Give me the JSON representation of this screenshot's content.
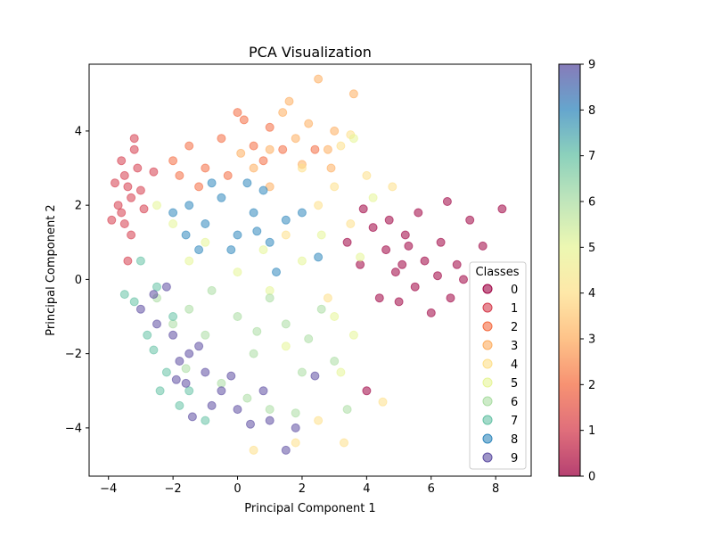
{
  "chart_data": {
    "type": "scatter",
    "title": "PCA Visualization",
    "xlabel": "Principal Component 1",
    "ylabel": "Principal Component 2",
    "xlim": [
      -4.6,
      9.1
    ],
    "ylim": [
      -5.3,
      5.8
    ],
    "xticks": [
      -4,
      -2,
      0,
      2,
      4,
      6,
      8
    ],
    "yticks": [
      -4,
      -2,
      0,
      2,
      4
    ],
    "legend": {
      "title": "Classes",
      "placement": "lower-right"
    },
    "colorbar": {
      "range": [
        0,
        9
      ],
      "ticks": [
        0,
        1,
        2,
        3,
        4,
        5,
        6,
        7,
        8,
        9
      ],
      "colormap": "Spectral"
    },
    "class_colors": [
      "#9e0142",
      "#d53e4f",
      "#f46d43",
      "#fdae61",
      "#fee08b",
      "#e6f598",
      "#abdda4",
      "#66c2a5",
      "#3288bd",
      "#5e4fa2"
    ],
    "series": [
      {
        "name": "0",
        "points": [
          [
            4.6,
            0.8
          ],
          [
            5.2,
            1.2
          ],
          [
            5.8,
            0.5
          ],
          [
            6.3,
            1.0
          ],
          [
            4.9,
            0.2
          ],
          [
            5.5,
            -0.2
          ],
          [
            6.8,
            0.4
          ],
          [
            7.2,
            1.6
          ],
          [
            3.8,
            0.4
          ],
          [
            4.2,
            1.4
          ],
          [
            5.0,
            -0.6
          ],
          [
            6.0,
            -0.9
          ],
          [
            6.6,
            -0.5
          ],
          [
            7.6,
            0.9
          ],
          [
            8.2,
            1.9
          ],
          [
            3.4,
            1.0
          ],
          [
            4.4,
            -0.5
          ],
          [
            4.0,
            -3.0
          ],
          [
            5.6,
            1.8
          ],
          [
            6.2,
            0.1
          ],
          [
            5.3,
            0.9
          ],
          [
            4.7,
            1.6
          ],
          [
            7.0,
            0.0
          ],
          [
            6.5,
            2.1
          ],
          [
            3.9,
            1.9
          ],
          [
            5.1,
            0.4
          ]
        ]
      },
      {
        "name": "1",
        "points": [
          [
            -3.5,
            2.8
          ],
          [
            -3.3,
            2.2
          ],
          [
            -3.6,
            1.8
          ],
          [
            -3.2,
            3.5
          ],
          [
            -3.4,
            2.5
          ],
          [
            -3.7,
            2.0
          ],
          [
            -3.1,
            3.0
          ],
          [
            -3.5,
            1.5
          ],
          [
            -3.0,
            2.4
          ],
          [
            -3.8,
            2.6
          ],
          [
            -3.3,
            1.2
          ],
          [
            -3.6,
            3.2
          ],
          [
            -2.9,
            1.9
          ],
          [
            -3.4,
            0.5
          ],
          [
            -3.2,
            3.8
          ],
          [
            -2.6,
            2.9
          ],
          [
            -3.9,
            1.6
          ]
        ]
      },
      {
        "name": "2",
        "points": [
          [
            -1.5,
            3.6
          ],
          [
            -1.0,
            3.0
          ],
          [
            -2.0,
            3.2
          ],
          [
            -0.5,
            3.8
          ],
          [
            0.2,
            4.3
          ],
          [
            0.8,
            3.2
          ],
          [
            -1.2,
            2.5
          ],
          [
            1.4,
            3.5
          ],
          [
            -0.3,
            2.8
          ],
          [
            0.5,
            3.6
          ],
          [
            2.4,
            3.5
          ],
          [
            -1.8,
            2.8
          ],
          [
            0.0,
            4.5
          ],
          [
            1.0,
            4.1
          ]
        ]
      },
      {
        "name": "3",
        "points": [
          [
            0.5,
            3.0
          ],
          [
            1.0,
            3.5
          ],
          [
            1.8,
            3.8
          ],
          [
            2.2,
            4.2
          ],
          [
            2.8,
            3.5
          ],
          [
            1.4,
            4.5
          ],
          [
            2.5,
            5.4
          ],
          [
            3.6,
            5.0
          ],
          [
            1.0,
            2.5
          ],
          [
            3.0,
            4.0
          ],
          [
            0.1,
            3.4
          ],
          [
            2.0,
            3.1
          ],
          [
            1.6,
            4.8
          ],
          [
            2.9,
            3.0
          ]
        ]
      },
      {
        "name": "4",
        "points": [
          [
            2.0,
            3.0
          ],
          [
            3.0,
            2.5
          ],
          [
            3.5,
            1.5
          ],
          [
            2.5,
            2.0
          ],
          [
            4.0,
            2.8
          ],
          [
            3.2,
            3.6
          ],
          [
            1.5,
            1.2
          ],
          [
            2.8,
            -0.5
          ],
          [
            4.5,
            -3.3
          ],
          [
            1.8,
            -4.4
          ],
          [
            3.3,
            -4.4
          ],
          [
            2.5,
            -3.8
          ],
          [
            3.5,
            3.9
          ],
          [
            4.8,
            2.5
          ],
          [
            0.5,
            -4.6
          ]
        ]
      },
      {
        "name": "5",
        "points": [
          [
            -2.0,
            1.5
          ],
          [
            -1.5,
            0.5
          ],
          [
            -1.0,
            1.0
          ],
          [
            0.0,
            0.2
          ],
          [
            1.0,
            -0.3
          ],
          [
            2.0,
            0.5
          ],
          [
            3.0,
            -1.0
          ],
          [
            3.6,
            -1.5
          ],
          [
            -2.5,
            2.0
          ],
          [
            2.6,
            1.2
          ],
          [
            3.8,
            0.6
          ],
          [
            1.5,
            -1.8
          ],
          [
            3.2,
            -2.5
          ],
          [
            0.8,
            0.8
          ],
          [
            3.6,
            3.8
          ],
          [
            4.2,
            2.2
          ]
        ]
      },
      {
        "name": "6",
        "points": [
          [
            -2.5,
            -0.5
          ],
          [
            -2.0,
            -1.2
          ],
          [
            -1.5,
            -0.8
          ],
          [
            -1.0,
            -1.5
          ],
          [
            0.0,
            -1.0
          ],
          [
            0.5,
            -2.0
          ],
          [
            1.0,
            -0.5
          ],
          [
            1.5,
            -1.2
          ],
          [
            2.0,
            -2.5
          ],
          [
            -0.5,
            -2.8
          ],
          [
            1.0,
            -3.5
          ],
          [
            2.2,
            -1.6
          ],
          [
            3.0,
            -2.2
          ],
          [
            -0.8,
            -0.3
          ],
          [
            0.3,
            -3.2
          ],
          [
            1.8,
            -3.6
          ],
          [
            2.6,
            -0.8
          ],
          [
            -1.6,
            -2.4
          ],
          [
            0.6,
            -1.4
          ],
          [
            3.4,
            -3.5
          ]
        ]
      },
      {
        "name": "7",
        "points": [
          [
            -3.0,
            0.5
          ],
          [
            -2.5,
            -0.2
          ],
          [
            -2.0,
            -1.0
          ],
          [
            -2.8,
            -1.5
          ],
          [
            -2.2,
            -2.5
          ],
          [
            -1.5,
            -3.0
          ],
          [
            -3.2,
            -0.6
          ],
          [
            -2.6,
            -1.9
          ],
          [
            -1.8,
            -3.4
          ],
          [
            -3.5,
            -0.4
          ],
          [
            -2.4,
            -3.0
          ],
          [
            -1.0,
            -3.8
          ]
        ]
      },
      {
        "name": "8",
        "points": [
          [
            -1.5,
            2.0
          ],
          [
            -1.0,
            1.5
          ],
          [
            -0.5,
            2.2
          ],
          [
            0.0,
            1.2
          ],
          [
            0.5,
            1.8
          ],
          [
            1.0,
            1.0
          ],
          [
            -0.2,
            0.8
          ],
          [
            0.8,
            2.4
          ],
          [
            1.5,
            1.6
          ],
          [
            2.0,
            1.8
          ],
          [
            -2.0,
            1.8
          ],
          [
            -1.2,
            0.8
          ],
          [
            0.3,
            2.6
          ],
          [
            1.2,
            0.2
          ],
          [
            -0.8,
            2.6
          ],
          [
            2.5,
            0.6
          ],
          [
            0.6,
            1.3
          ],
          [
            -1.6,
            1.2
          ]
        ]
      },
      {
        "name": "9",
        "points": [
          [
            -2.0,
            -1.5
          ],
          [
            -1.5,
            -2.0
          ],
          [
            -1.0,
            -2.5
          ],
          [
            -0.5,
            -3.0
          ],
          [
            -1.8,
            -2.2
          ],
          [
            -1.2,
            -1.8
          ],
          [
            0.0,
            -3.5
          ],
          [
            0.8,
            -3.0
          ],
          [
            -2.5,
            -1.2
          ],
          [
            -1.6,
            -2.8
          ],
          [
            -0.8,
            -3.4
          ],
          [
            1.0,
            -3.8
          ],
          [
            1.8,
            -4.0
          ],
          [
            -3.0,
            -0.8
          ],
          [
            -2.2,
            -0.2
          ],
          [
            0.4,
            -3.9
          ],
          [
            1.5,
            -4.6
          ],
          [
            -1.4,
            -3.7
          ],
          [
            -0.2,
            -2.6
          ],
          [
            2.4,
            -2.6
          ],
          [
            -2.6,
            -0.4
          ],
          [
            -1.9,
            -2.7
          ]
        ]
      }
    ]
  }
}
